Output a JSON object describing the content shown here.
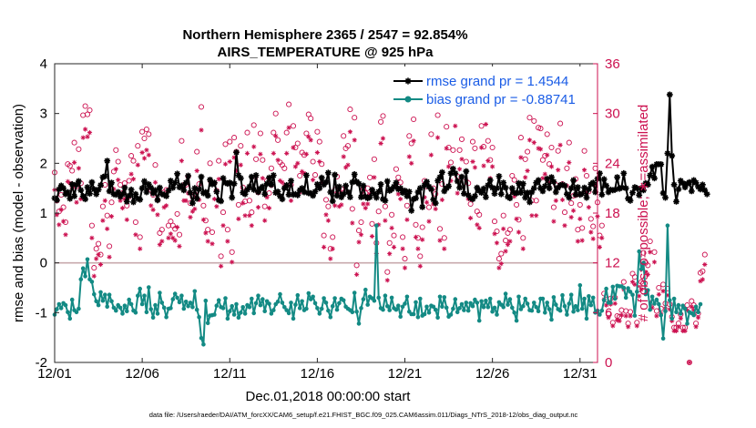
{
  "chart_data": {
    "type": "line",
    "title_line1": "Northern Hemisphere 2365 / 2547 = 92.854%",
    "title_line2": "AIRS_TEMPERATURE @ 925 hPa",
    "xlabel": "Dec.01,2018 00:00:00 start",
    "ylabel_left": "rmse and bias (model - observation)",
    "ylabel_right": "# of obs: o=possible; ∗=assimilated",
    "footnote": "data file: /Users/raeder/DAI/ATM_forcXX/CAM6_setup/f.e21.FHIST_BGC.f09_025.CAM6assim.011/Diags_NTrS_2018-12/obs_diag_output.nc",
    "xlim": [
      1,
      32
    ],
    "ylim_left": [
      -2,
      4
    ],
    "ylim_right": [
      0,
      36
    ],
    "x_ticks": [
      1,
      6,
      11,
      16,
      21,
      26,
      31
    ],
    "x_tick_labels": [
      "12/01",
      "12/06",
      "12/11",
      "12/16",
      "12/21",
      "12/26",
      "12/31"
    ],
    "y_left_ticks": [
      "-2",
      "-1",
      "0",
      "1",
      "2",
      "3",
      "4"
    ],
    "y_right_ticks": [
      "0",
      "6",
      "12",
      "18",
      "24",
      "30",
      "36"
    ],
    "zero_line": 0,
    "colors": {
      "rmse": "#000000",
      "bias": "#138a84",
      "obs": "#cc1150",
      "legend_text": "#1a5ce6",
      "zero_line": "#c8a9ad"
    },
    "series": [
      {
        "name": "rmse grand pr = 1.4544",
        "marker": "star",
        "x_start": 1,
        "dx": 0.125,
        "values": [
          1.3,
          1.26,
          1.48,
          1.55,
          1.5,
          1.38,
          1.42,
          1.29,
          1.58,
          1.34,
          1.57,
          1.64,
          1.46,
          1.34,
          1.28,
          1.52,
          1.39,
          1.62,
          1.48,
          1.38,
          1.47,
          1.56,
          1.72,
          1.74,
          2.05,
          1.44,
          1.61,
          1.38,
          1.37,
          1.42,
          1.33,
          1.38,
          1.51,
          1.23,
          1.35,
          1.47,
          1.22,
          1.38,
          1.29,
          1.27,
          1.5,
          1.64,
          1.42,
          1.58,
          1.51,
          1.4,
          1.46,
          1.26,
          1.51,
          1.38,
          1.37,
          1.34,
          1.45,
          1.65,
          1.51,
          1.61,
          1.79,
          1.52,
          1.55,
          1.46,
          1.61,
          1.75,
          1.41,
          1.2,
          1.5,
          1.29,
          1.48,
          1.73,
          1.4,
          1.42,
          1.35,
          1.67,
          1.58,
          1.61,
          1.43,
          1.26,
          1.24,
          1.7,
          1.61,
          1.59,
          1.61,
          1.31,
          1.59,
          2.22,
          1.76,
          1.7,
          1.41,
          1.38,
          1.47,
          1.53,
          1.73,
          1.47,
          1.76,
          1.42,
          1.49,
          1.53,
          1.38,
          1.59,
          1.71,
          1.57,
          1.76,
          1.41,
          1.43,
          1.34,
          1.28,
          1.5,
          1.56,
          1.37,
          1.65,
          1.37,
          1.38,
          1.36,
          1.46,
          1.5,
          1.42,
          1.76,
          1.4,
          1.4,
          1.35,
          1.43,
          1.58,
          1.5,
          1.71,
          1.57,
          1.62,
          1.81,
          1.42,
          1.24,
          1.77,
          1.35,
          1.53,
          1.32,
          1.38,
          1.55,
          1.42,
          1.32,
          1.62,
          1.78,
          1.63,
          1.59,
          1.32,
          1.55,
          1.33,
          1.3,
          1.32,
          1.47,
          1.39,
          1.31,
          1.43,
          1.58,
          1.28,
          1.25,
          1.64,
          1.45,
          1.48,
          1.53,
          1.61,
          1.48,
          1.5,
          1.41,
          1.45,
          1.34,
          1.43,
          1.05,
          1.28,
          1.3,
          1.42,
          1.5,
          1.12,
          1.56,
          1.63,
          1.53,
          1.48,
          1.27,
          1.2,
          1.65,
          1.72,
          1.82,
          1.44,
          1.5,
          1.54,
          1.8,
          1.89,
          1.8,
          1.64,
          1.51,
          1.73,
          1.39,
          1.84,
          1.36,
          1.3,
          1.28,
          1.34,
          1.51,
          1.45,
          1.41,
          1.49,
          1.32,
          1.56,
          1.66,
          1.51,
          1.39,
          1.5,
          1.74,
          1.38,
          1.61,
          1.51,
          1.33,
          1.3,
          1.5,
          1.41,
          1.4,
          1.6,
          1.41,
          1.59,
          1.31,
          1.41,
          1.22,
          1.42,
          1.5,
          1.61,
          1.66,
          1.5,
          1.44,
          1.54,
          1.69,
          1.5,
          1.72,
          1.63,
          1.42,
          1.51,
          1.56,
          1.57,
          1.55,
          1.38,
          1.31,
          1.5,
          1.66,
          1.37,
          1.52,
          1.37,
          1.39,
          1.51,
          1.31,
          1.48,
          1.58,
          1.61,
          1.42,
          1.69,
          1.8,
          1.37,
          1.68,
          1.55,
          1.42,
          1.47,
          1.46,
          1.47,
          1.72,
          1.49,
          1.51,
          1.8,
          1.5,
          1.29,
          1.25,
          1.41,
          1.52,
          1.5,
          1.36,
          1.5,
          1.46,
          1.6,
          1.57,
          1.76,
          1.93,
          1.7,
          1.98,
          1.98,
          1.98,
          1.4,
          1.31,
          2.2,
          3.38,
          2.15,
          1.57,
          1.23,
          1.48,
          1.65,
          1.6,
          1.52,
          1.59,
          1.62,
          1.44,
          1.66,
          1.61,
          1.53,
          1.48,
          1.57,
          1.46,
          1.38
        ]
      },
      {
        "name": "bias grand pr = -0.88741",
        "marker": "dot",
        "x_start": 1,
        "dx": 0.125,
        "values": [
          -1.04,
          -0.93,
          -0.83,
          -0.91,
          -0.81,
          -0.85,
          -0.99,
          -1.12,
          -0.74,
          -0.95,
          -0.99,
          -0.92,
          -0.33,
          -0.11,
          -0.27,
          0.07,
          -0.33,
          -0.38,
          -0.63,
          -0.77,
          -0.85,
          -0.59,
          -0.76,
          -0.64,
          -0.88,
          -0.64,
          -0.77,
          -0.9,
          -0.96,
          -0.85,
          -0.9,
          -1.02,
          -0.86,
          -0.97,
          -0.74,
          -0.83,
          -0.96,
          -1.0,
          -0.66,
          -0.52,
          -0.83,
          -0.66,
          -0.99,
          -0.49,
          -0.93,
          -1.1,
          -0.85,
          -1.02,
          -0.6,
          -0.8,
          -0.9,
          -1.09,
          -0.92,
          -0.91,
          -0.73,
          -0.62,
          -0.7,
          -0.79,
          -0.66,
          -0.92,
          -0.78,
          -0.87,
          -0.8,
          -0.89,
          -0.57,
          -0.94,
          -1.09,
          -1.51,
          -1.64,
          -0.76,
          -1.21,
          -1.06,
          -1.05,
          -1.04,
          -0.86,
          -0.75,
          -0.89,
          -0.91,
          -0.71,
          -1.12,
          -0.97,
          -0.87,
          -1.04,
          -0.83,
          -1.1,
          -1.0,
          -0.89,
          -1.02,
          -0.85,
          -0.89,
          -0.72,
          -1.01,
          -0.81,
          -0.66,
          -0.85,
          -0.73,
          -0.97,
          -0.77,
          -0.82,
          -1.02,
          -0.95,
          -0.83,
          -0.78,
          -0.63,
          -0.8,
          -0.89,
          -0.95,
          -1.01,
          -0.8,
          -1.12,
          -0.84,
          -0.65,
          -0.91,
          -0.77,
          -0.95,
          -0.92,
          -0.61,
          -0.73,
          -0.68,
          -0.81,
          -0.91,
          -1.02,
          -0.92,
          -0.71,
          -0.8,
          -0.96,
          -1.09,
          -0.87,
          -0.71,
          -0.94,
          -0.81,
          -0.72,
          -0.75,
          -0.88,
          -0.92,
          -0.95,
          -0.99,
          -0.6,
          -0.98,
          -1.22,
          -0.91,
          -0.73,
          -0.54,
          -0.84,
          -0.68,
          -0.71,
          -0.76,
          0.75,
          -0.7,
          -0.91,
          -0.94,
          -0.66,
          -0.87,
          -0.95,
          -0.7,
          -0.91,
          -0.94,
          -0.86,
          -1.08,
          -0.88,
          -0.82,
          -0.68,
          -0.98,
          -1.03,
          -1.03,
          -0.79,
          -1.09,
          -0.72,
          -1.06,
          -1.03,
          -0.88,
          -1.0,
          -0.86,
          -0.88,
          -0.94,
          -1.1,
          -0.68,
          -0.88,
          -0.69,
          -0.9,
          -1.08,
          -1.04,
          -0.92,
          -0.73,
          -0.99,
          -0.91,
          -0.83,
          -0.95,
          -0.8,
          -0.96,
          -0.81,
          -0.87,
          -0.74,
          -0.8,
          -1.16,
          -0.77,
          -0.89,
          -0.76,
          -0.89,
          -0.72,
          -0.98,
          -0.9,
          -1.04,
          -0.79,
          -0.84,
          -0.89,
          -0.62,
          -0.84,
          -0.73,
          -0.9,
          -1.0,
          -1.16,
          -0.68,
          -0.93,
          -0.87,
          -0.72,
          -0.82,
          -0.95,
          -0.96,
          -0.8,
          -0.89,
          -0.97,
          -0.72,
          -0.72,
          -1.0,
          -0.8,
          -0.93,
          -1.14,
          -0.69,
          -0.84,
          -0.93,
          -0.96,
          -0.65,
          -0.87,
          -1.04,
          -0.82,
          -0.64,
          -0.98,
          -0.87,
          -0.95,
          -0.45,
          -0.92,
          -0.72,
          -1.12,
          -0.67,
          -0.85,
          -0.7,
          -1.0,
          -0.96,
          -1.04,
          -0.96,
          -0.75,
          -0.52,
          -0.8,
          -0.8,
          -0.48,
          -0.72,
          -0.46,
          -0.47,
          -0.47,
          -0.5,
          -0.7,
          -0.51,
          -0.58,
          -0.64,
          -1.06,
          -0.58,
          0.23,
          -0.13,
          0.0,
          -0.63,
          -0.55,
          -0.94,
          -0.68,
          -0.82,
          -0.74,
          -0.83,
          -1.05,
          -1.52,
          -0.97,
          0.75,
          -0.75,
          -1.12,
          -0.72,
          -0.99,
          -0.85,
          -1.02,
          -0.86,
          -0.92,
          -1.22,
          -0.99,
          -1.01,
          -1.05,
          -0.88,
          -0.99,
          -0.83
        ]
      }
    ],
    "obs_counts": {
      "x_start": 1,
      "dx": 0.125,
      "possible": [
        22.9,
        19.5,
        18.2,
        20.2,
        18.7,
        16.9,
        23.9,
        23.7,
        23.1,
        26.5,
        21.2,
        25.7,
        21.6,
        29.8,
        30.9,
        29.9,
        30.4,
        16.5,
        11.4,
        13.7,
        14.3,
        13.0,
        18.8,
        21.4,
        17.7,
        14.0,
        19.3,
        23.0,
        25.6,
        24.2,
        21.4,
        20.4,
        21.6,
        18.9,
        21.9,
        24.9,
        24.3,
        16.9,
        26.1,
        15.1,
        27.8,
        27.0,
        28.1,
        27.5,
        20.8,
        20.2,
        23.8,
        19.6,
        15.6,
        16.0,
        20.5,
        20.8,
        16.5,
        17.0,
        16.5,
        16.1,
        17.9,
        15.4,
        26.7,
        21.4,
        21.4,
        22.4,
        19.2,
        20.0,
        20.3,
        25.4,
        21.5,
        30.8,
        18.9,
        17.1,
        16.0,
        24.0,
        15.7,
        21.6,
        20.7,
        24.3,
        12.8,
        18.1,
        26.3,
        16.0,
        26.6,
        13.3,
        27.1,
        25.4,
        19.0,
        26.1,
        21.1,
        19.4,
        27.7,
        19.5,
        18.1,
        28.6,
        24.5,
        20.5,
        27.6,
        24.4,
        18.8,
        21.9,
        20.4,
        23.4,
        27.7,
        30.0,
        26.8,
        24.1,
        23.8,
        23.4,
        27.7,
        31.1,
        21.4,
        28.5,
        25.9,
        26.4,
        22.5,
        25.3,
        25.0,
        27.6,
        29.9,
        29.4,
        24.2,
        22.6,
        27.8,
        26.6,
        23.9,
        15.3,
        19.6,
        18.8,
        13.7,
        15.1,
        20.8,
        22.4,
        20.7,
        20.9,
        27.3,
        25.8,
        26.1,
        30.5,
        18.5,
        29.5,
        11.7,
        15.9,
        16.9,
        21.0,
        20.4,
        21.0,
        22.3,
        16.7,
        24.5,
        14.4,
        18.2,
        29.0,
        29.7,
        18.8,
        10.9,
        14.4,
        17.8,
        15.3,
        23.3,
        22.3,
        21.7,
        15.1,
        12.5,
        18.9,
        27.3,
        26.4,
        29.3,
        16.6,
        15.0,
        12.8,
        16.3,
        21.9,
        21.2,
        18.7,
        27.5,
        21.0,
        20.3,
        29.8,
        16.1,
        21.5,
        15.0,
        28.4,
        25.9,
        24.1,
        25.6,
        31.3,
        22.4,
        25.6,
        26.9,
        34.6,
        24.2,
        21.6,
        19.1,
        26.6,
        25.8,
        18.2,
        17.8,
        28.5,
        26.0,
        31.5,
        26.7,
        24.4,
        25.9,
        17.0,
        15.8,
        12.5,
        13.1,
        17.7,
        14.7,
        15.6,
        16.0,
        22.5,
        22.0,
        19.0,
        17.2,
        27.1,
        15.0,
        24.5,
        25.4,
        29.5,
        19.5,
        29.1,
        19.5,
        28.3,
        28.2,
        24.4,
        24.9,
        27.5,
        23.9,
        25.9,
        18.7,
        21.4,
        25.5,
        28.8,
        21.5,
        18.1,
        23.4,
        26.5,
        19.2,
        20.1,
        22.1,
        16.0,
        19.0,
        16.2,
        25.5,
        22.5,
        20.6,
        17.3,
        16.4,
        23.4,
        19.3,
        15.3,
        16.5,
        8.3,
        7.6,
        5.9,
        7.7,
        4.8,
        7.8,
        5.6,
        5.5,
        6.3,
        9.7,
        6.2,
        4.7,
        6.1,
        10.7,
        10.3,
        4.8,
        8.8,
        9.7,
        13.2,
        12.0,
        11.7,
        14.6,
        7.2,
        13.3,
        6.2,
        9.0,
        6.5,
        9.4,
        7.1,
        8.9,
        7.0,
        5.5,
        4.2,
        4.2,
        4.7,
        5.8,
        4.2,
        4.2,
        6.9,
        0.0,
        7.4,
        6.9,
        4.7,
        5.9,
        10.8,
        11.0,
        13.0
      ],
      "assimilated": [
        20.8,
        17.8,
        16.6,
        18.4,
        17.0,
        15.4,
        21.8,
        21.6,
        21.0,
        24.1,
        19.3,
        23.4,
        19.7,
        27.1,
        28.1,
        27.2,
        27.7,
        15.0,
        10.4,
        12.5,
        13.0,
        11.8,
        17.1,
        19.5,
        16.1,
        12.7,
        17.6,
        20.9,
        23.3,
        22.0,
        19.5,
        18.6,
        19.7,
        17.2,
        19.9,
        22.7,
        22.1,
        15.4,
        23.8,
        13.7,
        25.3,
        24.6,
        25.6,
        25.0,
        18.9,
        18.4,
        21.7,
        17.8,
        14.2,
        14.6,
        18.7,
        18.9,
        15.0,
        15.5,
        15.0,
        14.7,
        16.3,
        14.0,
        24.3,
        19.5,
        19.5,
        20.4,
        17.5,
        18.2,
        18.5,
        23.1,
        19.6,
        28.0,
        17.2,
        15.6,
        14.6,
        21.8,
        14.3,
        19.7,
        18.8,
        22.1,
        11.6,
        16.5,
        23.9,
        14.6,
        24.2,
        12.1,
        24.7,
        23.1,
        17.3,
        23.8,
        19.2,
        17.7,
        25.2,
        17.7,
        16.5,
        26.0,
        22.3,
        18.7,
        25.1,
        22.2,
        17.1,
        19.9,
        18.6,
        21.3,
        25.2,
        27.3,
        24.4,
        21.9,
        21.7,
        21.3,
        25.2,
        28.3,
        19.5,
        25.9,
        23.6,
        24.0,
        20.5,
        23.0,
        22.8,
        25.1,
        27.2,
        26.8,
        22.0,
        20.6,
        25.3,
        24.2,
        21.7,
        13.9,
        17.8,
        17.1,
        12.5,
        13.7,
        18.9,
        20.4,
        18.8,
        19.0,
        24.8,
        23.5,
        23.8,
        27.8,
        16.8,
        26.8,
        10.6,
        14.5,
        15.4,
        19.1,
        18.6,
        19.1,
        20.3,
        15.2,
        22.3,
        13.1,
        16.6,
        26.4,
        27.0,
        17.1,
        9.9,
        13.1,
        16.2,
        13.9,
        21.2,
        20.3,
        19.7,
        13.7,
        11.4,
        17.2,
        24.8,
        24.0,
        26.7,
        15.1,
        13.7,
        11.6,
        14.8,
        19.9,
        19.3,
        17.0,
        25.0,
        19.1,
        18.5,
        27.1,
        14.7,
        19.6,
        13.7,
        25.8,
        23.6,
        21.9,
        23.3,
        28.5,
        20.4,
        23.3,
        24.5,
        31.5,
        22.0,
        19.7,
        17.4,
        24.2,
        23.5,
        16.6,
        16.2,
        25.9,
        23.7,
        28.7,
        24.3,
        22.2,
        23.6,
        15.5,
        14.4,
        11.4,
        11.9,
        16.1,
        13.4,
        14.2,
        14.6,
        20.5,
        20.0,
        17.3,
        15.7,
        24.7,
        13.7,
        22.3,
        23.1,
        26.8,
        17.7,
        26.5,
        17.7,
        25.8,
        25.7,
        22.2,
        22.7,
        25.0,
        21.7,
        23.6,
        17.0,
        19.5,
        23.2,
        26.2,
        19.6,
        16.5,
        21.3,
        24.1,
        17.5,
        18.3,
        20.1,
        14.6,
        17.3,
        14.7,
        23.2,
        20.5,
        18.7,
        15.7,
        14.9,
        21.3,
        17.6,
        13.9,
        15.0,
        7.6,
        6.9,
        5.4,
        7.0,
        4.4,
        7.1,
        5.1,
        5.0,
        5.7,
        8.8,
        5.6,
        4.3,
        5.6,
        9.7,
        9.4,
        4.4,
        8.0,
        8.8,
        12.0,
        10.9,
        10.6,
        13.3,
        6.6,
        12.1,
        5.6,
        8.2,
        5.9,
        8.6,
        6.5,
        8.1,
        6.4,
        5.0,
        3.8,
        3.8,
        4.3,
        5.3,
        3.8,
        3.8,
        6.3,
        0.0,
        6.7,
        6.3,
        4.3,
        5.4,
        9.8,
        10.0,
        11.8
      ]
    }
  }
}
